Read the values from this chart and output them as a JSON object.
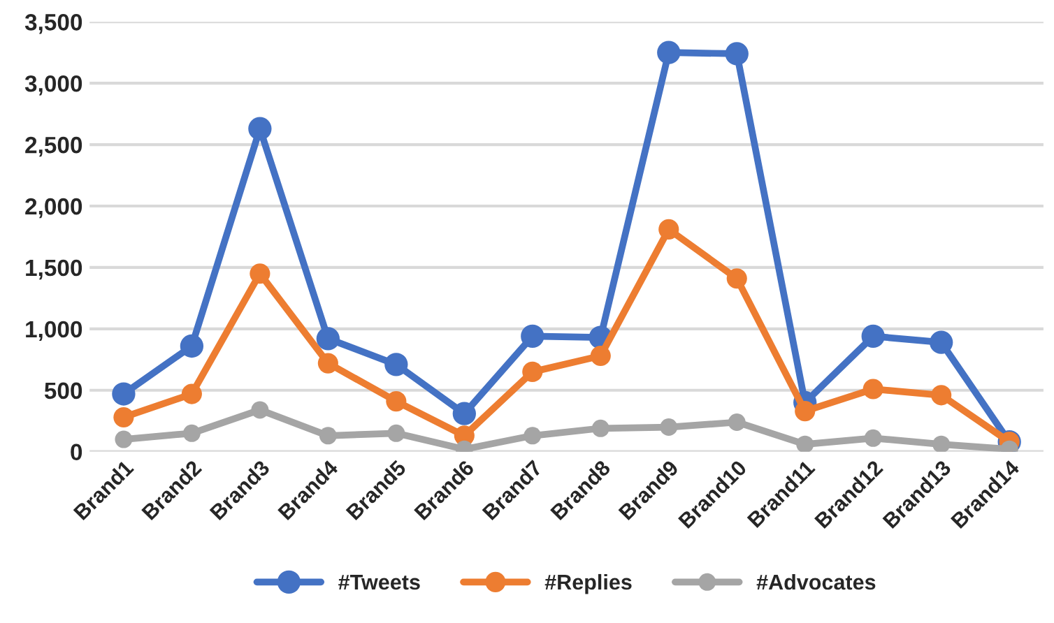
{
  "chart_data": {
    "type": "line",
    "categories": [
      "Brand1",
      "Brand2",
      "Brand3",
      "Brand4",
      "Brand5",
      "Brand6",
      "Brand7",
      "Brand8",
      "Brand9",
      "Brand10",
      "Brand11",
      "Brand12",
      "Brand13",
      "Brand14"
    ],
    "series": [
      {
        "name": "#Tweets",
        "color": "#4472c4",
        "values": [
          470,
          860,
          2630,
          920,
          710,
          310,
          940,
          930,
          3250,
          3240,
          400,
          940,
          890,
          80
        ]
      },
      {
        "name": "#Replies",
        "color": "#ed7d31",
        "values": [
          280,
          470,
          1450,
          720,
          410,
          130,
          650,
          780,
          1810,
          1410,
          330,
          510,
          460,
          80
        ]
      },
      {
        "name": "#Advocates",
        "color": "#a5a5a5",
        "values": [
          100,
          150,
          340,
          130,
          150,
          20,
          130,
          190,
          200,
          240,
          60,
          110,
          60,
          20
        ]
      }
    ],
    "ylim": [
      0,
      3500
    ],
    "yticks": [
      {
        "value": 0,
        "label": "0"
      },
      {
        "value": 500,
        "label": "500"
      },
      {
        "value": 1000,
        "label": "1,000"
      },
      {
        "value": 1500,
        "label": "1,500"
      },
      {
        "value": 2000,
        "label": "2,000"
      },
      {
        "value": 2500,
        "label": "2,500"
      },
      {
        "value": 3000,
        "label": "3,000"
      },
      {
        "value": 3500,
        "label": "3,500"
      }
    ],
    "grid": "y",
    "legend": "bottom",
    "marker": "circle",
    "line_style": "solid"
  }
}
